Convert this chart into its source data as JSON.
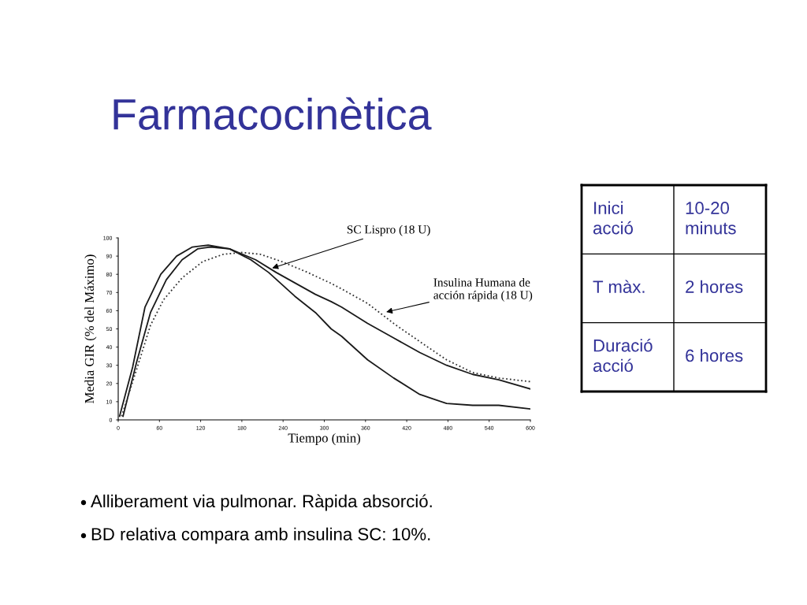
{
  "chart_data": [
    {
      "type": "line",
      "title": "Farmacocinètica",
      "xlabel": "Tiempo (min)",
      "ylabel": "Media GIR (% del Máximo)",
      "xlim": [
        0,
        600
      ],
      "xticks": [
        0,
        60,
        120,
        180,
        240,
        300,
        360,
        420,
        480,
        540,
        600
      ],
      "ylim": [
        0,
        100
      ],
      "yticks": [
        0,
        10,
        20,
        30,
        40,
        50,
        60,
        70,
        80,
        90,
        100
      ],
      "grid": false,
      "legend": false,
      "series": [
        {
          "color": "#1a1a1a",
          "line_style": "solid",
          "x": [
            2,
            21,
            39,
            62,
            85,
            108,
            131,
            162,
            193,
            219,
            257,
            287,
            310,
            325,
            363,
            401,
            439,
            478,
            516,
            554,
            600
          ],
          "values": [
            2,
            29,
            62,
            80,
            90,
            95,
            96,
            94,
            88,
            81,
            68,
            59,
            50,
            46,
            33,
            23,
            14,
            9,
            8,
            8,
            6
          ]
        },
        {
          "color": "#1a1a1a",
          "line_style": "solid",
          "x": [
            7,
            27,
            47,
            70,
            93,
            116,
            134,
            162,
            200,
            230,
            268,
            287,
            310,
            325,
            363,
            401,
            439,
            478,
            516,
            554,
            600
          ],
          "values": [
            2,
            32,
            59,
            77,
            88,
            94,
            95,
            94,
            88,
            81,
            73,
            69,
            65,
            62,
            53,
            45,
            37,
            30,
            25,
            22,
            17
          ]
        },
        {
          "color": "#333333",
          "line_style": "dotted",
          "x": [
            5,
            27,
            47,
            66,
            93,
            123,
            153,
            180,
            207,
            238,
            276,
            287,
            310,
            325,
            363,
            401,
            439,
            478,
            516,
            554,
            600
          ],
          "values": [
            2,
            28,
            52,
            66,
            78,
            87,
            91,
            92,
            91,
            87,
            81,
            79,
            75,
            72,
            64,
            53,
            43,
            33,
            26,
            23,
            21
          ]
        }
      ],
      "annotations": [
        {
          "text": "SC Lispro (18 U)",
          "x": 221,
          "y": 83
        },
        {
          "text": "Insulina Humana de\nacción rápida (18 U)",
          "x": 387,
          "y": 59
        },
        "Alliberament via pulmonar. Ràpida absorció.",
        "BD relativa compara amb insulina SC: 10%."
      ]
    },
    {
      "type": "other",
      "annotations": [
        "Inici\nacció",
        "10-20\nminuts",
        "T màx.",
        "2 hores",
        "Duració\nacció",
        "6 hores"
      ]
    }
  ]
}
